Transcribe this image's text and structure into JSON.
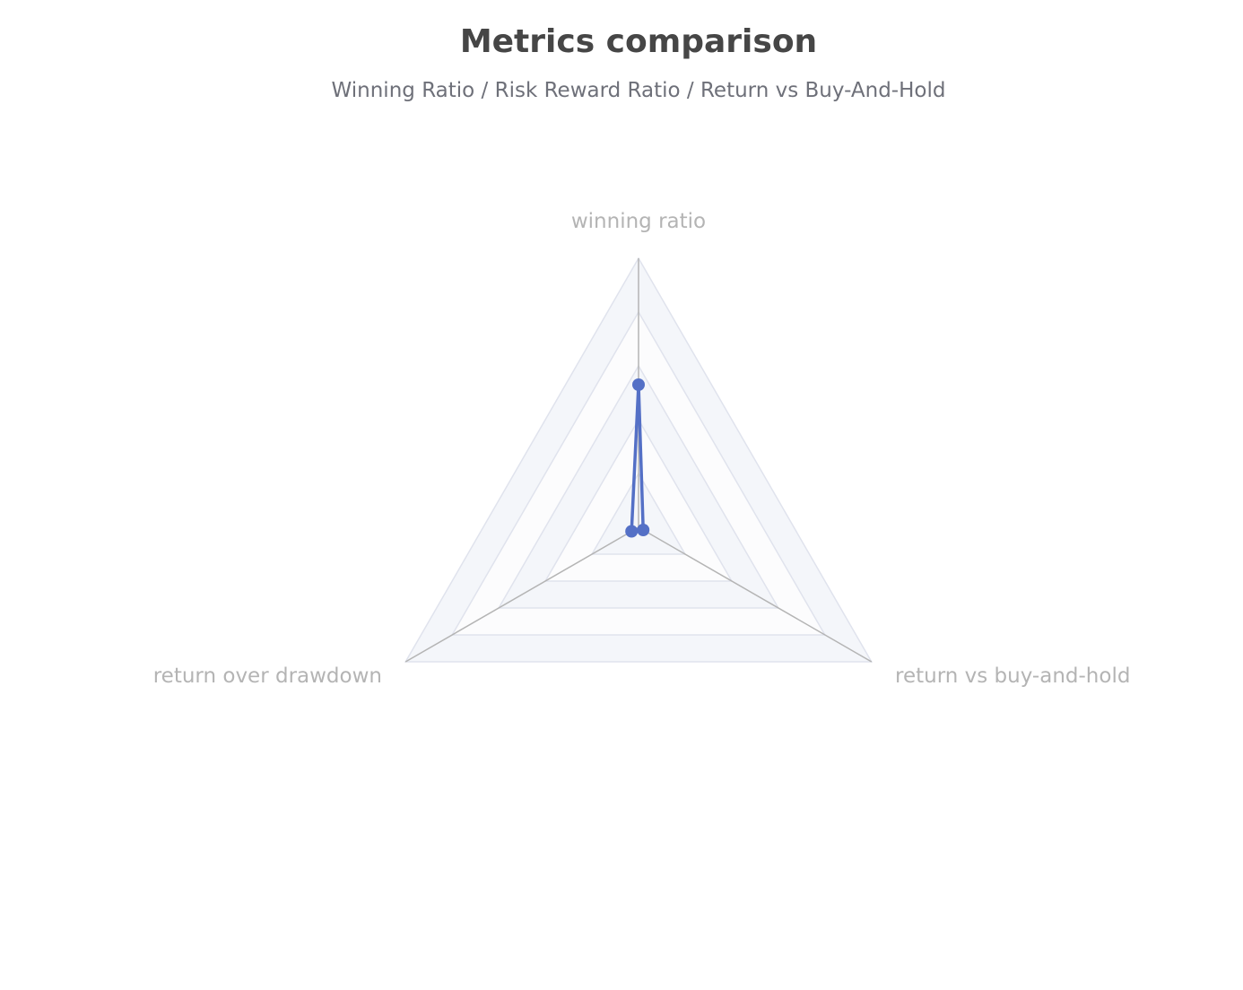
{
  "chart_data": {
    "type": "radar",
    "title": "Metrics comparison",
    "subtitle": "Winning Ratio / Risk Reward Ratio / Return vs Buy-And-Hold",
    "indicators": [
      {
        "name": "winning ratio",
        "max": 1
      },
      {
        "name": "return vs buy-and-hold",
        "max": 1
      },
      {
        "name": "return over drawdown",
        "max": 1
      }
    ],
    "split_number": 5,
    "series": [
      {
        "values": [
          0.53,
          0.02,
          0.03
        ]
      }
    ],
    "colors": {
      "series": "#5470c6",
      "axis_line": "#b4b4b4",
      "split_line": "#e0e3ed",
      "split_area": [
        "#fcfcfd",
        "#f4f6fa"
      ],
      "axis_label": "#b4b4b4",
      "title": "#464646",
      "subtitle": "#6e7079"
    }
  }
}
